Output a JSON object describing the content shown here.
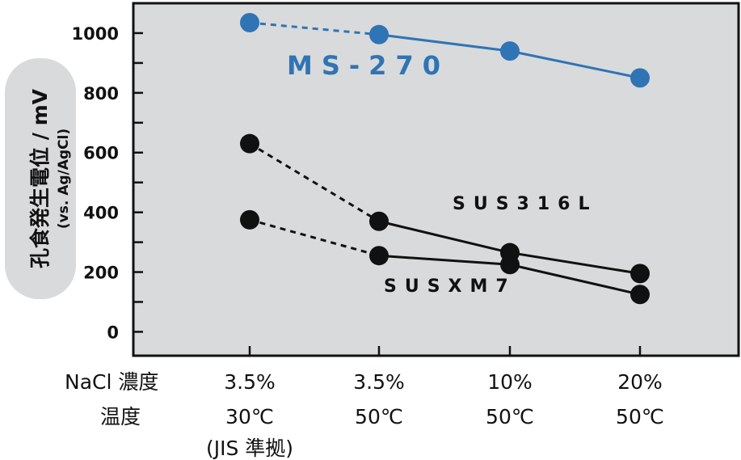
{
  "y_axis": {
    "label_main": "孔食発生電位 / mV",
    "label_sub": "(vs. Ag/AgCl)"
  },
  "x_axis": {
    "row_labels": [
      "NaCl 濃度",
      "温度"
    ],
    "categories": [
      {
        "conc": "3.5%",
        "temp": "30℃",
        "note": "(JIS 準拠)"
      },
      {
        "conc": "3.5%",
        "temp": "50℃",
        "note": ""
      },
      {
        "conc": "10%",
        "temp": "50℃",
        "note": ""
      },
      {
        "conc": "20%",
        "temp": "50℃",
        "note": ""
      }
    ]
  },
  "series_labels": {
    "ms270": "MS-270",
    "sus316l": "SUS316L",
    "susxm7": "SUSXM7"
  },
  "chart_data": {
    "type": "line",
    "categories": [
      "3.5% 30℃",
      "3.5% 50℃",
      "10% 50℃",
      "20% 50℃"
    ],
    "ylim": [
      -80,
      1100
    ],
    "yticks": [
      0,
      200,
      400,
      600,
      800,
      1000
    ],
    "grid": false,
    "background": "#d9dadb",
    "series": [
      {
        "name": "MS-270",
        "values": [
          1035,
          995,
          940,
          850
        ],
        "color": "#2f74b5",
        "dashed_first_segment": true
      },
      {
        "name": "SUS316L",
        "values": [
          630,
          370,
          265,
          195
        ],
        "color": "#111111",
        "dashed_first_segment": true
      },
      {
        "name": "SUSXM7",
        "values": [
          375,
          255,
          225,
          125
        ],
        "color": "#111111",
        "dashed_first_segment": true
      }
    ]
  }
}
